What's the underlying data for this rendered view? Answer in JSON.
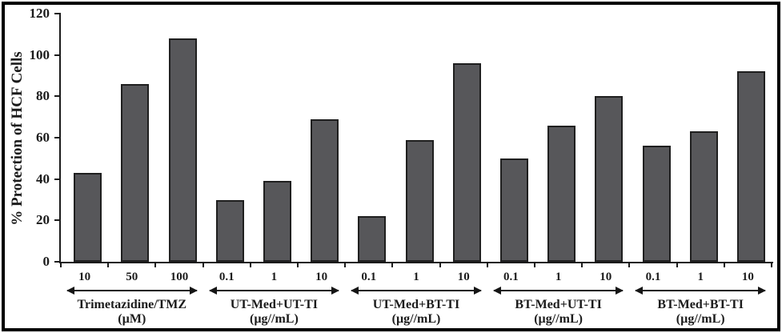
{
  "chart_data": {
    "type": "bar",
    "title": "",
    "ylabel": "% Protection of HCF Cells",
    "xlabel": "",
    "ylim": [
      0,
      120
    ],
    "yticks": [
      0,
      20,
      40,
      60,
      80,
      100,
      120
    ],
    "grid": false,
    "legend": "none",
    "bar_color": "#57575a",
    "bar_border_color": "#1f1f1f",
    "axis_color": "#1b1b1b",
    "frame_color": "#000000",
    "groups": [
      {
        "name": "Trimetazidine/TMZ",
        "unit": "(µM)",
        "categories": [
          "10",
          "50",
          "100"
        ],
        "values": [
          43,
          86,
          108
        ]
      },
      {
        "name": "UT-Med+UT-TI",
        "unit": "(µg//mL)",
        "categories": [
          "0.1",
          "1",
          "10"
        ],
        "values": [
          30,
          39,
          69
        ]
      },
      {
        "name": "UT-Med+BT-TI",
        "unit": "(µg//mL)",
        "categories": [
          "0.1",
          "1",
          "10"
        ],
        "values": [
          22,
          59,
          96
        ]
      },
      {
        "name": "BT-Med+UT-TI",
        "unit": "(µg//mL)",
        "categories": [
          "0.1",
          "1",
          "10"
        ],
        "values": [
          50,
          66,
          80
        ]
      },
      {
        "name": "BT-Med+BT-TI",
        "unit": "(µg//mL)",
        "categories": [
          "0.1",
          "1",
          "10"
        ],
        "values": [
          56,
          63,
          92
        ]
      }
    ]
  }
}
